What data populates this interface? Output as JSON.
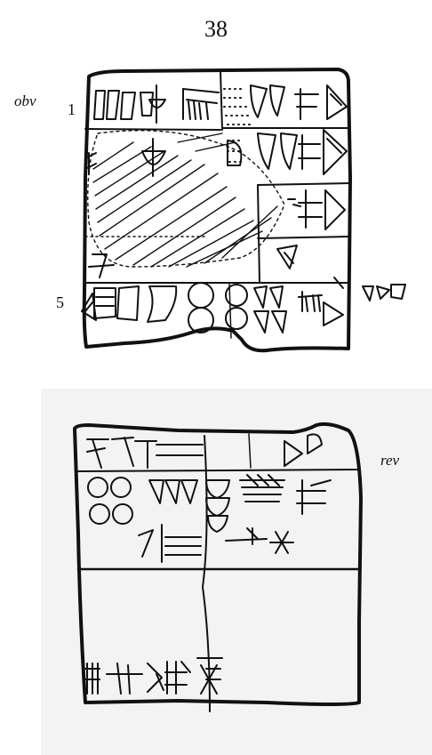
{
  "page": {
    "number": "38"
  },
  "obverse": {
    "label": "obv",
    "line_numbers": [
      "1",
      "5"
    ]
  },
  "reverse": {
    "label": "rev"
  },
  "colors": {
    "ink": "#111111",
    "paper": "#ffffff",
    "reverse_background": "#f3f3f3"
  }
}
